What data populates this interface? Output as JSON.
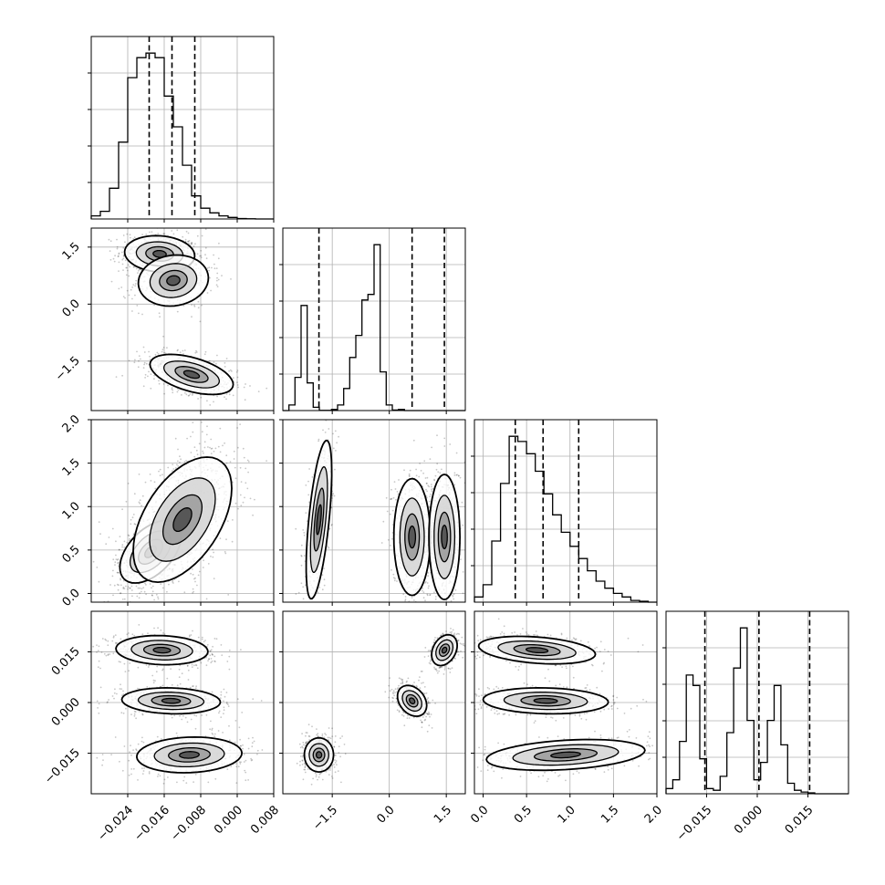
{
  "chart_data": {
    "type": "corner",
    "grid": true,
    "colors": {
      "line": "#000000",
      "grid": "#b0b0b0",
      "scatter": "#000000"
    },
    "params": [
      {
        "range": [
          -0.032,
          0.008
        ],
        "ticks": [
          -0.024,
          -0.016,
          -0.008,
          0.0,
          0.008
        ],
        "tick_labels": [
          "−0.024",
          "−0.016",
          "−0.008",
          "0.000",
          "0.008"
        ]
      },
      {
        "range": [
          -2.8,
          2.0
        ],
        "ticks": [
          -1.5,
          0.0,
          1.5
        ],
        "tick_labels": [
          "−1.5",
          "0.0",
          "1.5"
        ]
      },
      {
        "range": [
          -0.1,
          2.0
        ],
        "ticks": [
          0.0,
          0.5,
          1.0,
          1.5,
          2.0
        ],
        "tick_labels": [
          "0.0",
          "0.5",
          "1.0",
          "1.5",
          "2.0"
        ]
      },
      {
        "range": [
          -0.027,
          0.027
        ],
        "ticks": [
          -0.015,
          0.0,
          0.015
        ],
        "tick_labels": [
          "−0.015",
          "0.000",
          "0.015"
        ]
      }
    ],
    "histograms": [
      {
        "param": 0,
        "edges_start": -0.032,
        "bin_width": 0.002,
        "counts": [
          0.02,
          0.05,
          0.2,
          0.5,
          0.92,
          1.05,
          1.08,
          1.05,
          0.8,
          0.6,
          0.35,
          0.15,
          0.07,
          0.04,
          0.02,
          0.01,
          0.003,
          0.001,
          0,
          0
        ],
        "quantiles": [
          -0.0193,
          -0.0143,
          -0.0093
        ]
      },
      {
        "param": 1,
        "edges_start": -2.8,
        "bin_width": 0.16,
        "counts": [
          0,
          0.05,
          0.3,
          0.95,
          0.25,
          0.03,
          0.002,
          0.002,
          0.01,
          0.05,
          0.2,
          0.48,
          0.68,
          1.0,
          1.05,
          1.5,
          0.35,
          0.05,
          0.005,
          0.01,
          0,
          0,
          0,
          0,
          0,
          0,
          0,
          0,
          0,
          0
        ],
        "quantiles": [
          -1.85,
          0.6,
          1.45
        ]
      },
      {
        "param": 2,
        "edges_start": -0.1,
        "bin_width": 0.1,
        "counts": [
          0.03,
          0.1,
          0.35,
          0.68,
          0.95,
          0.92,
          0.85,
          0.75,
          0.62,
          0.5,
          0.4,
          0.32,
          0.25,
          0.18,
          0.12,
          0.08,
          0.05,
          0.03,
          0.01,
          0.005,
          0,
          0
        ],
        "quantiles": [
          0.37,
          0.69,
          1.1
        ]
      },
      {
        "param": 3,
        "edges_start": -0.027,
        "bin_width": 0.002,
        "counts": [
          0.03,
          0.08,
          0.3,
          0.68,
          0.62,
          0.2,
          0.03,
          0.02,
          0.1,
          0.35,
          0.72,
          0.95,
          0.42,
          0.08,
          0.18,
          0.42,
          0.62,
          0.28,
          0.06,
          0.02,
          0.01,
          0.005,
          0,
          0,
          0,
          0,
          0,
          0
        ],
        "quantiles": [
          -0.0155,
          0.0005,
          0.0155
        ]
      }
    ],
    "scatter_2d": [
      {
        "x": 0,
        "y": 1,
        "modes": [
          {
            "cx": -0.017,
            "cy": 1.32,
            "sx": 0.0032,
            "sy": 0.2,
            "w": 0.38,
            "rho": -0.1
          },
          {
            "cx": -0.014,
            "cy": 0.62,
            "sx": 0.0032,
            "sy": 0.28,
            "w": 0.24,
            "rho": 0.1
          },
          {
            "cx": -0.01,
            "cy": -1.85,
            "sx": 0.0038,
            "sy": 0.22,
            "w": 0.38,
            "rho": -0.5
          }
        ]
      },
      {
        "x": 0,
        "y": 2,
        "modes": [
          {
            "cx": -0.019,
            "cy": 0.48,
            "sx": 0.0028,
            "sy": 0.15,
            "w": 0.35,
            "rho": 0.5
          },
          {
            "cx": -0.012,
            "cy": 0.85,
            "sx": 0.0045,
            "sy": 0.3,
            "w": 0.65,
            "rho": 0.5
          }
        ]
      },
      {
        "x": 0,
        "y": 3,
        "modes": [
          {
            "cx": -0.0165,
            "cy": 0.0155,
            "sx": 0.0042,
            "sy": 0.0018,
            "w": 0.33,
            "rho": -0.1
          },
          {
            "cx": -0.0145,
            "cy": 0.0005,
            "sx": 0.0045,
            "sy": 0.0016,
            "w": 0.34,
            "rho": -0.1
          },
          {
            "cx": -0.0105,
            "cy": -0.0155,
            "sx": 0.0048,
            "sy": 0.0022,
            "w": 0.33,
            "rho": 0.1
          }
        ]
      },
      {
        "x": 1,
        "y": 2,
        "modes": [
          {
            "cx": -1.85,
            "cy": 0.85,
            "sx": 0.14,
            "sy": 0.38,
            "w": 0.28,
            "rho": 0.6
          },
          {
            "cx": 0.6,
            "cy": 0.65,
            "sx": 0.2,
            "sy": 0.28,
            "w": 0.34,
            "rho": 0
          },
          {
            "cx": 1.45,
            "cy": 0.65,
            "sx": 0.17,
            "sy": 0.3,
            "w": 0.38,
            "rho": 0
          }
        ]
      },
      {
        "x": 1,
        "y": 3,
        "modes": [
          {
            "cx": -1.85,
            "cy": -0.0155,
            "sx": 0.16,
            "sy": 0.0021,
            "w": 0.33,
            "rho": 0
          },
          {
            "cx": 0.6,
            "cy": 0.0005,
            "sx": 0.16,
            "sy": 0.0019,
            "w": 0.33,
            "rho": -0.3
          },
          {
            "cx": 1.45,
            "cy": 0.0155,
            "sx": 0.14,
            "sy": 0.0019,
            "w": 0.34,
            "rho": 0.3
          }
        ]
      },
      {
        "x": 2,
        "y": 3,
        "modes": [
          {
            "cx": 0.62,
            "cy": 0.0155,
            "sx": 0.28,
            "sy": 0.0017,
            "w": 0.33,
            "rho": -0.3
          },
          {
            "cx": 0.72,
            "cy": 0.0005,
            "sx": 0.3,
            "sy": 0.0016,
            "w": 0.33,
            "rho": -0.1
          },
          {
            "cx": 0.95,
            "cy": -0.0155,
            "sx": 0.38,
            "sy": 0.0019,
            "w": 0.34,
            "rho": 0.3
          }
        ]
      }
    ]
  }
}
